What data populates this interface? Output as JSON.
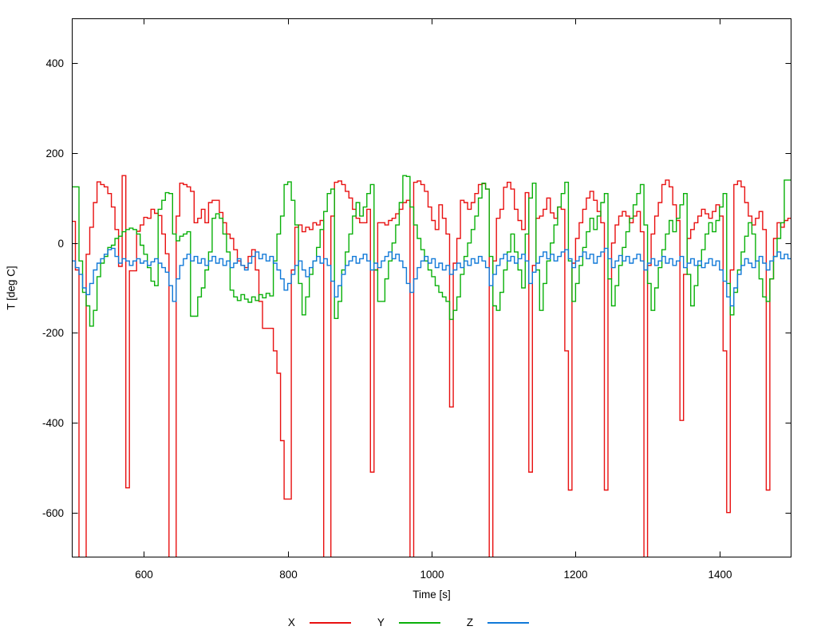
{
  "chart_data": {
    "type": "line",
    "style": "steps-post",
    "title": "",
    "xlabel": "Time [s]",
    "ylabel": "T [deg C]",
    "xlim": [
      500,
      1500
    ],
    "ylim": [
      -700,
      500
    ],
    "xticks": [
      600,
      800,
      1000,
      1200,
      1400
    ],
    "yticks": [
      -600,
      -400,
      -200,
      0,
      200,
      400
    ],
    "grid": false,
    "legend_position": "bottom-center",
    "background": "#ffffff",
    "border_color": "#000000",
    "x_start": 500,
    "x_step": 5,
    "series": [
      {
        "name": "X",
        "color": "#e81010",
        "values": [
          48,
          -60,
          -700,
          -700,
          -25,
          35,
          90,
          136,
          130,
          125,
          110,
          80,
          30,
          -52,
          150,
          -545,
          -62,
          -62,
          26,
          40,
          57,
          55,
          75,
          66,
          61,
          20,
          -24,
          -700,
          -700,
          60,
          133,
          130,
          125,
          115,
          45,
          55,
          75,
          45,
          90,
          95,
          95,
          68,
          45,
          20,
          10,
          -15,
          -40,
          -50,
          -55,
          -30,
          -15,
          -60,
          -130,
          -190,
          -190,
          -190,
          -240,
          -290,
          -440,
          -570,
          -570,
          -60,
          35,
          40,
          25,
          35,
          30,
          45,
          40,
          50,
          -700,
          -700,
          60,
          135,
          138,
          130,
          115,
          100,
          75,
          55,
          45,
          45,
          75,
          -510,
          -60,
          45,
          45,
          40,
          50,
          55,
          65,
          75,
          90,
          95,
          -700,
          135,
          138,
          130,
          115,
          80,
          50,
          30,
          85,
          55,
          20,
          -365,
          -45,
          10,
          95,
          90,
          75,
          90,
          110,
          130,
          132,
          120,
          -700,
          -40,
          55,
          75,
          124,
          135,
          120,
          75,
          50,
          30,
          112,
          -510,
          -50,
          55,
          60,
          75,
          100,
          67,
          55,
          80,
          75,
          -240,
          -550,
          -45,
          10,
          45,
          75,
          100,
          115,
          95,
          70,
          45,
          -550,
          -80,
          0,
          40,
          60,
          70,
          60,
          45,
          60,
          70,
          25,
          -700,
          -50,
          20,
          60,
          90,
          130,
          140,
          125,
          85,
          50,
          -395,
          -70,
          10,
          30,
          45,
          60,
          75,
          65,
          55,
          70,
          85,
          60,
          -240,
          -600,
          -60,
          130,
          138,
          125,
          90,
          60,
          40,
          55,
          70,
          30,
          -550,
          -80,
          10,
          45,
          35,
          50,
          55,
          40
        ]
      },
      {
        "name": "Y",
        "color": "#09b009",
        "values": [
          125,
          125,
          -40,
          -110,
          -140,
          -185,
          -150,
          -75,
          -45,
          -30,
          -10,
          -5,
          10,
          15,
          25,
          30,
          33,
          30,
          20,
          -5,
          -25,
          -55,
          -85,
          -95,
          75,
          95,
          112,
          110,
          20,
          5,
          15,
          20,
          25,
          -163,
          -163,
          -120,
          -100,
          -60,
          -20,
          55,
          65,
          55,
          20,
          -20,
          -105,
          -120,
          -128,
          -115,
          -125,
          -132,
          -120,
          -128,
          -115,
          -122,
          -112,
          -118,
          -40,
          20,
          60,
          130,
          136,
          95,
          40,
          -90,
          -160,
          -120,
          -70,
          -40,
          -10,
          30,
          70,
          110,
          120,
          -168,
          -130,
          -60,
          -20,
          20,
          60,
          90,
          60,
          80,
          110,
          130,
          -60,
          -130,
          -130,
          -80,
          -40,
          0,
          40,
          90,
          150,
          148,
          80,
          40,
          10,
          -15,
          -40,
          -60,
          -75,
          -95,
          -110,
          -120,
          -130,
          -170,
          -150,
          -120,
          -70,
          -30,
          0,
          30,
          60,
          100,
          133,
          120,
          -30,
          -140,
          -150,
          -110,
          -60,
          -20,
          20,
          -20,
          -60,
          -100,
          20,
          100,
          133,
          -60,
          -150,
          -90,
          -40,
          0,
          40,
          80,
          110,
          135,
          -40,
          -130,
          -90,
          -50,
          -10,
          25,
          55,
          30,
          60,
          90,
          110,
          -80,
          -140,
          -95,
          -50,
          -10,
          25,
          55,
          85,
          110,
          130,
          40,
          -90,
          -150,
          -100,
          -55,
          -15,
          20,
          50,
          25,
          55,
          85,
          110,
          -70,
          -140,
          -95,
          -50,
          -15,
          20,
          45,
          25,
          50,
          80,
          110,
          -90,
          -160,
          -110,
          -60,
          -20,
          15,
          45,
          20,
          -40,
          -80,
          -120,
          -130,
          -80,
          -30,
          10,
          45,
          140,
          140,
          15
        ]
      },
      {
        "name": "Z",
        "color": "#1079d8",
        "values": [
          -40,
          -55,
          -70,
          -100,
          -115,
          -90,
          -60,
          -45,
          -35,
          -25,
          -15,
          -12,
          -30,
          -45,
          -35,
          -40,
          -50,
          -40,
          -35,
          -45,
          -40,
          -50,
          -42,
          -35,
          -45,
          -55,
          -65,
          -95,
          -130,
          -80,
          -50,
          -35,
          -25,
          -40,
          -30,
          -45,
          -35,
          -50,
          -40,
          -30,
          -45,
          -35,
          -50,
          -40,
          -55,
          -45,
          -35,
          -50,
          -60,
          -45,
          -30,
          -20,
          -35,
          -25,
          -40,
          -30,
          -45,
          -60,
          -80,
          -105,
          -90,
          -70,
          -50,
          -40,
          -60,
          -75,
          -55,
          -40,
          -30,
          -45,
          -35,
          -50,
          -85,
          -120,
          -95,
          -70,
          -50,
          -40,
          -30,
          -45,
          -35,
          -25,
          -40,
          -60,
          -45,
          -55,
          -40,
          -30,
          -20,
          -35,
          -25,
          -40,
          -55,
          -90,
          -110,
          -80,
          -55,
          -40,
          -30,
          -45,
          -35,
          -55,
          -45,
          -60,
          -50,
          -70,
          -60,
          -45,
          -55,
          -40,
          -50,
          -35,
          -45,
          -30,
          -40,
          -55,
          -95,
          -70,
          -50,
          -35,
          -25,
          -40,
          -30,
          -45,
          -35,
          -25,
          -40,
          -90,
          -65,
          -45,
          -30,
          -20,
          -35,
          -25,
          -40,
          -30,
          -20,
          -15,
          -35,
          -55,
          -40,
          -30,
          -20,
          -35,
          -25,
          -45,
          -30,
          -20,
          -12,
          -35,
          -55,
          -40,
          -28,
          -40,
          -30,
          -45,
          -35,
          -25,
          -40,
          -60,
          -45,
          -35,
          -50,
          -40,
          -30,
          -45,
          -35,
          -50,
          -40,
          -30,
          -55,
          -45,
          -35,
          -50,
          -40,
          -55,
          -45,
          -35,
          -50,
          -40,
          -60,
          -85,
          -120,
          -140,
          -100,
          -70,
          -50,
          -35,
          -45,
          -55,
          -40,
          -30,
          -45,
          -60,
          -40,
          -30,
          -20,
          -35,
          -25,
          -35,
          -40
        ]
      }
    ]
  }
}
